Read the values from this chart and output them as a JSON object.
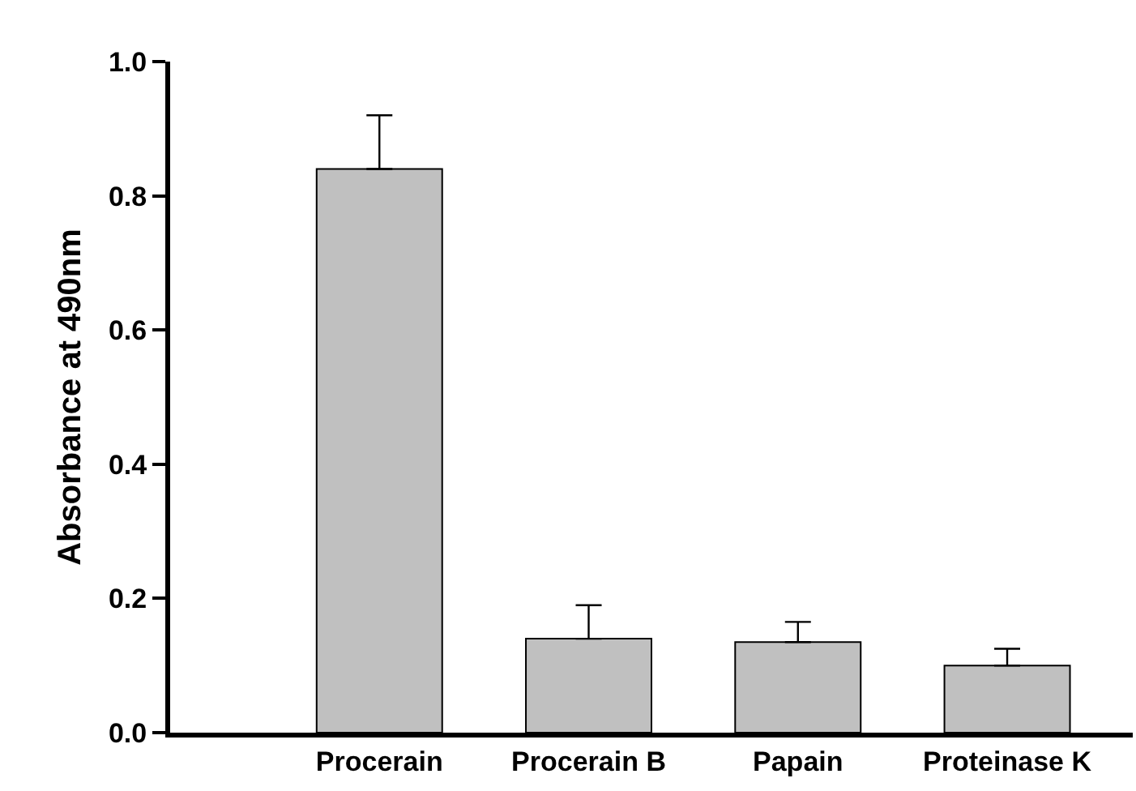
{
  "chart_data": {
    "type": "bar",
    "ylabel": "Absorbance at 490nm",
    "categories": [
      "Procerain",
      "Procerain B",
      "Papain",
      "Proteinase K"
    ],
    "values": [
      0.84,
      0.14,
      0.135,
      0.1
    ],
    "errors": [
      [
        0.84,
        0.92
      ],
      [
        0.14,
        0.19
      ],
      [
        0.135,
        0.165
      ],
      [
        0.1,
        0.125
      ]
    ],
    "color": "#c0c0c0",
    "ylim": [
      0,
      1.0
    ],
    "yticks": [
      {
        "value": 0,
        "label": "0.0"
      },
      {
        "value": 0.2,
        "label": "0.2"
      },
      {
        "value": 0.4,
        "label": "0.4"
      },
      {
        "value": 0.6,
        "label": "0.6"
      },
      {
        "value": 0.8,
        "label": "0.8"
      },
      {
        "value": 1.0,
        "label": "1.0"
      }
    ],
    "legend": false
  }
}
